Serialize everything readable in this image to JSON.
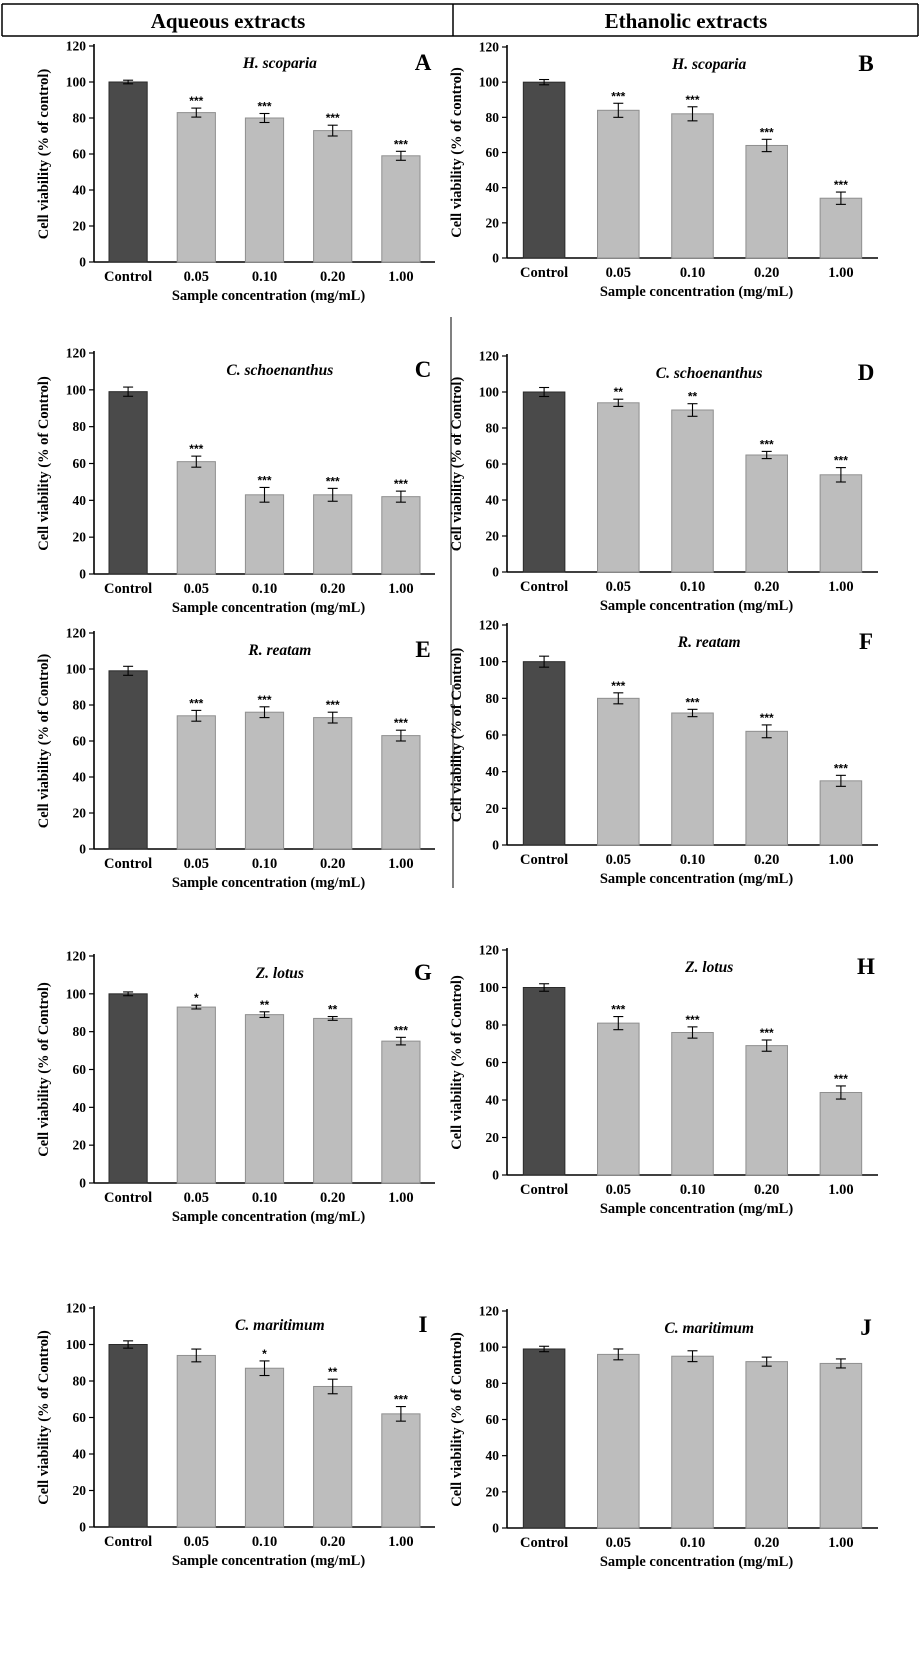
{
  "header": {
    "left_title": "Aqueous extracts",
    "right_title": "Ethanolic extracts"
  },
  "colors": {
    "control_bar": "#4a4a4a",
    "sample_bar": "#bdbdbd",
    "axis": "#000000"
  },
  "chart_data": [
    {
      "panel": "A",
      "type": "bar",
      "title": "H. scoparia",
      "ylabel": "Cell viability (% of control)",
      "xlabel": "Sample concentration (mg/mL)",
      "categories": [
        "Control",
        "0.05",
        "0.10",
        "0.20",
        "1.00"
      ],
      "values": [
        100,
        83,
        80,
        73,
        59
      ],
      "errors": [
        1,
        2.5,
        2.5,
        3,
        2.5
      ],
      "significance": [
        "",
        "***",
        "***",
        "***",
        "***"
      ],
      "ylim": [
        0,
        120
      ],
      "yticks": [
        "0",
        "20",
        "40",
        "60",
        "80",
        "100",
        "120"
      ]
    },
    {
      "panel": "B",
      "type": "bar",
      "title": "H. scoparia",
      "ylabel": "Cell viability (% of control)",
      "xlabel": "Sample concentration (mg/mL)",
      "categories": [
        "Control",
        "0.05",
        "0.10",
        "0.20",
        "1.00"
      ],
      "values": [
        100,
        84,
        82,
        64,
        34
      ],
      "errors": [
        1.5,
        4,
        4,
        3.5,
        3.5
      ],
      "significance": [
        "",
        "***",
        "***",
        "***",
        "***"
      ],
      "ylim": [
        0,
        120
      ],
      "yticks": [
        "0",
        "20",
        "40",
        "60",
        "80",
        "100",
        "120"
      ]
    },
    {
      "panel": "C",
      "type": "bar",
      "title": "C. schoenanthus",
      "ylabel": "Cell viability (% of Control)",
      "xlabel": "Sample concentration (mg/mL)",
      "categories": [
        "Control",
        "0.05",
        "0.10",
        "0.20",
        "1.00"
      ],
      "values": [
        99,
        61,
        43,
        43,
        42
      ],
      "errors": [
        2.5,
        3,
        4,
        3.5,
        3
      ],
      "significance": [
        "",
        "***",
        "***",
        "***",
        "***"
      ],
      "ylim": [
        0,
        120
      ],
      "yticks": [
        "0",
        "20",
        "40",
        "60",
        "80",
        "100",
        "120"
      ]
    },
    {
      "panel": "D",
      "type": "bar",
      "title": "C. schoenanthus",
      "ylabel": "Cell viability (% of Control)",
      "xlabel": "Sample concentration (mg/mL)",
      "categories": [
        "Control",
        "0.05",
        "0.10",
        "0.20",
        "1.00"
      ],
      "values": [
        100,
        94,
        90,
        65,
        54
      ],
      "errors": [
        2.5,
        2,
        3.5,
        2,
        4
      ],
      "significance": [
        "",
        "**",
        "**",
        "***",
        "***"
      ],
      "ylim": [
        0,
        120
      ],
      "yticks": [
        "0",
        "20",
        "40",
        "60",
        "80",
        "100",
        "120"
      ]
    },
    {
      "panel": "E",
      "type": "bar",
      "title": "R. reatam",
      "ylabel": "Cell viability (% of Control)",
      "xlabel": "Sample concentration (mg/mL)",
      "categories": [
        "Control",
        "0.05",
        "0.10",
        "0.20",
        "1.00"
      ],
      "values": [
        99,
        74,
        76,
        73,
        63
      ],
      "errors": [
        2.5,
        3,
        3,
        3,
        3
      ],
      "significance": [
        "",
        "***",
        "***",
        "***",
        "***"
      ],
      "ylim": [
        0,
        120
      ],
      "yticks": [
        "0",
        "20",
        "40",
        "60",
        "80",
        "100",
        "120"
      ]
    },
    {
      "panel": "F",
      "type": "bar",
      "title": "R. reatam",
      "ylabel": "Cell viability (% of Control)",
      "xlabel": "Sample concentration (mg/mL)",
      "categories": [
        "Control",
        "0.05",
        "0.10",
        "0.20",
        "1.00"
      ],
      "values": [
        100,
        80,
        72,
        62,
        35
      ],
      "errors": [
        3,
        3,
        2,
        3.5,
        3
      ],
      "significance": [
        "",
        "***",
        "***",
        "***",
        "***"
      ],
      "ylim": [
        0,
        120
      ],
      "yticks": [
        "0",
        "20",
        "40",
        "60",
        "80",
        "100",
        "120"
      ]
    },
    {
      "panel": "G",
      "type": "bar",
      "title": "Z. lotus",
      "ylabel": "Cell viability (% of Control)",
      "xlabel": "Sample concentration (mg/mL)",
      "categories": [
        "Control",
        "0.05",
        "0.10",
        "0.20",
        "1.00"
      ],
      "values": [
        100,
        93,
        89,
        87,
        75
      ],
      "errors": [
        1,
        1,
        1.5,
        1,
        2
      ],
      "significance": [
        "",
        "*",
        "**",
        "**",
        "***"
      ],
      "ylim": [
        0,
        120
      ],
      "yticks": [
        "0",
        "20",
        "40",
        "60",
        "80",
        "100",
        "120"
      ]
    },
    {
      "panel": "H",
      "type": "bar",
      "title": "Z. lotus",
      "ylabel": "Cell viability (% of Control)",
      "xlabel": "Sample concentration (mg/mL)",
      "categories": [
        "Control",
        "0.05",
        "0.10",
        "0.20",
        "1.00"
      ],
      "values": [
        100,
        81,
        76,
        69,
        44
      ],
      "errors": [
        2,
        3.5,
        3,
        3,
        3.5
      ],
      "significance": [
        "",
        "***",
        "***",
        "***",
        "***"
      ],
      "ylim": [
        0,
        120
      ],
      "yticks": [
        "0",
        "20",
        "40",
        "60",
        "80",
        "100",
        "120"
      ]
    },
    {
      "panel": "I",
      "type": "bar",
      "title": "C. maritimum",
      "ylabel": "Cell viability (% of Control)",
      "xlabel": "Sample concentration (mg/mL)",
      "categories": [
        "Control",
        "0.05",
        "0.10",
        "0.20",
        "1.00"
      ],
      "values": [
        100,
        94,
        87,
        77,
        62
      ],
      "errors": [
        2,
        3.5,
        4,
        4,
        4
      ],
      "significance": [
        "",
        "",
        "*",
        "**",
        "***"
      ],
      "ylim": [
        0,
        120
      ],
      "yticks": [
        "0",
        "20",
        "40",
        "60",
        "80",
        "100",
        "120"
      ]
    },
    {
      "panel": "J",
      "type": "bar",
      "title": "C. maritimum",
      "ylabel": "Cell viability (% of Control)",
      "xlabel": "Sample concentration (mg/mL)",
      "categories": [
        "Control",
        "0.05",
        "0.10",
        "0.20",
        "1.00"
      ],
      "values": [
        99,
        96,
        95,
        92,
        91
      ],
      "errors": [
        1.5,
        3,
        3,
        2.5,
        2.5
      ],
      "significance": [
        "",
        "",
        "",
        "",
        ""
      ],
      "ylim": [
        0,
        120
      ],
      "yticks": [
        "0",
        "20",
        "40",
        "60",
        "80",
        "100",
        "120"
      ]
    }
  ]
}
